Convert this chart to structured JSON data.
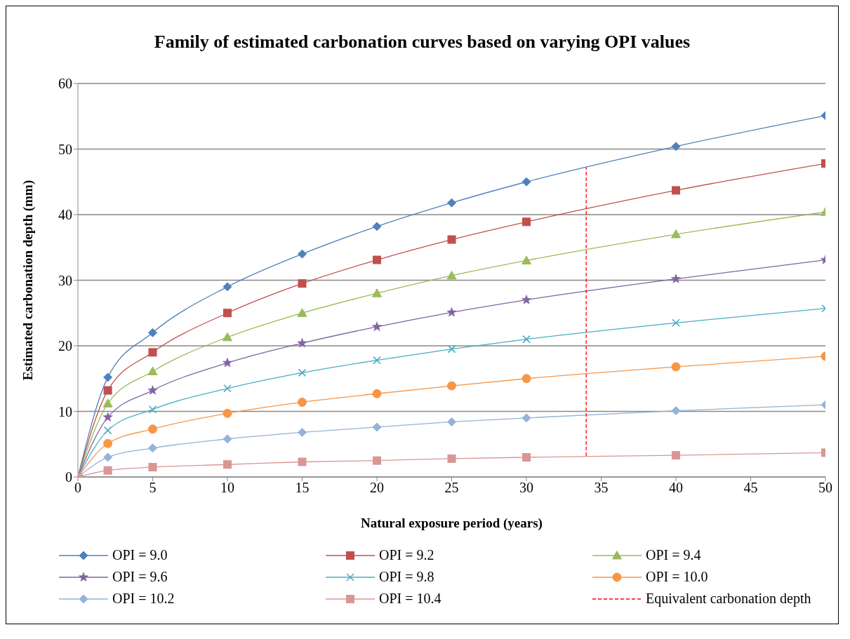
{
  "chart_data": {
    "type": "line",
    "title": "Family of estimated carbonation curves based on varying OPI values",
    "xlabel": "Natural exposure period (years)",
    "ylabel": "Estimated carbonation depth (mm)",
    "x": [
      0,
      2,
      5,
      10,
      15,
      20,
      25,
      30,
      40,
      50
    ],
    "series": [
      {
        "name": "OPI = 9.0",
        "color": "#4f81bd",
        "marker": "diamond",
        "values": [
          0,
          15.2,
          22,
          29,
          34,
          38.2,
          41.8,
          45,
          50.4,
          55.1
        ]
      },
      {
        "name": "OPI = 9.2",
        "color": "#c0504d",
        "marker": "square",
        "values": [
          0,
          13.2,
          19,
          25,
          29.5,
          33.1,
          36.2,
          38.9,
          43.7,
          47.8
        ]
      },
      {
        "name": "OPI = 9.4",
        "color": "#9bbb59",
        "marker": "triangle",
        "values": [
          0,
          11.2,
          16.1,
          21.3,
          25,
          28,
          30.7,
          33,
          37,
          40.4
        ]
      },
      {
        "name": "OPI = 9.6",
        "color": "#8064a2",
        "marker": "star",
        "values": [
          0,
          9.1,
          13.2,
          17.4,
          20.4,
          22.9,
          25.1,
          27,
          30.2,
          33.1
        ]
      },
      {
        "name": "OPI = 9.8",
        "color": "#4bacc6",
        "marker": "cross",
        "values": [
          0,
          7.1,
          10.3,
          13.5,
          15.9,
          17.8,
          19.5,
          21,
          23.5,
          25.7
        ]
      },
      {
        "name": "OPI = 10.0",
        "color": "#f79646",
        "marker": "circle",
        "values": [
          0,
          5.1,
          7.3,
          9.7,
          11.4,
          12.7,
          13.9,
          15,
          16.8,
          18.4
        ]
      },
      {
        "name": "OPI = 10.2",
        "color": "#95b3d7",
        "marker": "diamond",
        "values": [
          0,
          3,
          4.4,
          5.8,
          6.8,
          7.6,
          8.4,
          9,
          10.1,
          11
        ]
      },
      {
        "name": "OPI = 10.4",
        "color": "#d99694",
        "marker": "square",
        "values": [
          0,
          1,
          1.5,
          1.9,
          2.3,
          2.5,
          2.8,
          3,
          3.3,
          3.7
        ]
      },
      {
        "name": "Equivalent carbonation depth",
        "color": "#ff0000",
        "marker": "none",
        "line_style": "dashed",
        "x": [
          34,
          34
        ],
        "values": [
          3.2,
          47.2
        ]
      }
    ],
    "xlim": [
      0,
      50
    ],
    "xticks": [
      0,
      5,
      10,
      15,
      20,
      25,
      30,
      35,
      40,
      45,
      50
    ],
    "ylim": [
      0,
      60
    ],
    "yticks": [
      0,
      10,
      20,
      30,
      40,
      50,
      60
    ],
    "grid": "y",
    "legend": "bottom"
  }
}
